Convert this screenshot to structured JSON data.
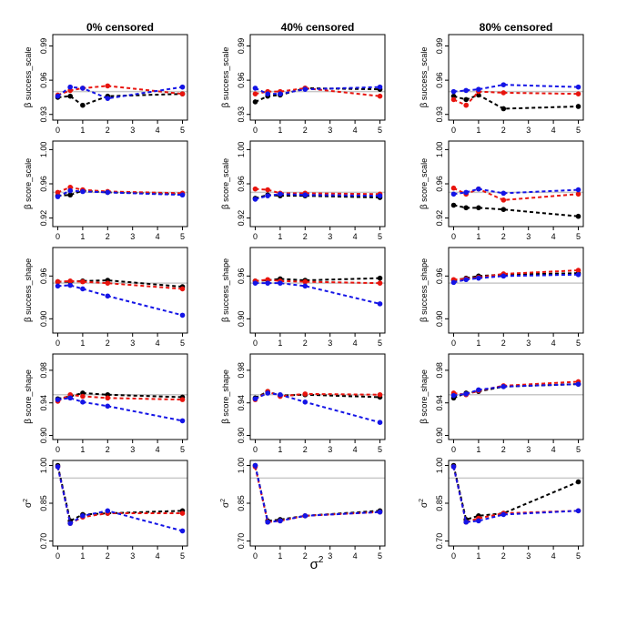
{
  "figure": {
    "xlabel_base": "σ",
    "xlabel_exp": "2"
  },
  "colors": {
    "black": "#000000",
    "red": "#e8140e",
    "blue": "#1414e6",
    "reference": "#c8c8c8"
  },
  "x_ticks": [
    "0",
    "1",
    "2",
    "3",
    "4",
    "5"
  ],
  "columns": [
    "0% censored",
    "40% censored",
    "80% censored"
  ],
  "rows": [
    {
      "ylabel_main": "β",
      "ylabel_sub": " success_scale",
      "yticks": [
        "0.93",
        "0.96",
        "0.99"
      ],
      "ylim": [
        0.925,
        1.0
      ],
      "ref": 0.95
    },
    {
      "ylabel_main": "β",
      "ylabel_sub": " score_scale",
      "yticks": [
        "0.92",
        "0.96",
        "1.00"
      ],
      "ylim": [
        0.91,
        1.01
      ],
      "ref": 0.95
    },
    {
      "ylabel_main": "β",
      "ylabel_sub": " success_shape",
      "yticks": [
        "0.90",
        "0.96"
      ],
      "ylim": [
        0.88,
        1.0
      ],
      "ref": 0.95
    },
    {
      "ylabel_main": "β",
      "ylabel_sub": " score_shape",
      "yticks": [
        "0.90",
        "0.94",
        "0.98"
      ],
      "ylim": [
        0.895,
        1.0
      ],
      "ref": 0.95
    },
    {
      "ylabel_main": "σ",
      "ylabel_sub": "2",
      "yticks": [
        "0.70",
        "0.85",
        "1.00"
      ],
      "ylim": [
        0.68,
        1.02
      ],
      "ref": 0.95
    }
  ],
  "chart_data": [
    {
      "type": "line",
      "title": "0% censored",
      "ylabel": "β success_scale",
      "x": [
        0,
        0.5,
        1,
        2,
        5
      ],
      "ref": 0.95,
      "series": [
        {
          "name": "black",
          "values": [
            0.945,
            0.946,
            0.938,
            0.946,
            0.948
          ]
        },
        {
          "name": "red",
          "values": [
            0.947,
            0.951,
            0.953,
            0.955,
            0.948
          ]
        },
        {
          "name": "blue",
          "values": [
            0.946,
            0.954,
            0.953,
            0.944,
            0.954
          ]
        }
      ]
    },
    {
      "type": "line",
      "title": "40% censored",
      "ylabel": "β success_scale",
      "x": [
        0,
        0.5,
        1,
        2,
        5
      ],
      "ref": 0.95,
      "series": [
        {
          "name": "black",
          "values": [
            0.941,
            0.946,
            0.947,
            0.953,
            0.952
          ]
        },
        {
          "name": "red",
          "values": [
            0.948,
            0.95,
            0.95,
            0.953,
            0.946
          ]
        },
        {
          "name": "blue",
          "values": [
            0.953,
            0.948,
            0.948,
            0.952,
            0.954
          ]
        }
      ]
    },
    {
      "type": "line",
      "title": "80% censored",
      "ylabel": "β success_scale",
      "x": [
        0,
        0.5,
        1,
        2,
        5
      ],
      "ref": 0.95,
      "series": [
        {
          "name": "black",
          "values": [
            0.946,
            0.943,
            0.947,
            0.935,
            0.937
          ]
        },
        {
          "name": "red",
          "values": [
            0.943,
            0.938,
            0.95,
            0.949,
            0.948
          ]
        },
        {
          "name": "blue",
          "values": [
            0.95,
            0.951,
            0.952,
            0.956,
            0.954
          ]
        }
      ]
    },
    {
      "type": "line",
      "title": "0% censored",
      "ylabel": "β score_scale",
      "x": [
        0,
        0.5,
        1,
        2,
        5
      ],
      "ref": 0.95,
      "series": [
        {
          "name": "black",
          "values": [
            0.946,
            0.947,
            0.952,
            0.95,
            0.948
          ]
        },
        {
          "name": "red",
          "values": [
            0.95,
            0.956,
            0.953,
            0.951,
            0.949
          ]
        },
        {
          "name": "blue",
          "values": [
            0.945,
            0.952,
            0.951,
            0.95,
            0.947
          ]
        }
      ]
    },
    {
      "type": "line",
      "title": "40% censored",
      "ylabel": "β score_scale",
      "x": [
        0,
        0.5,
        1,
        2,
        5
      ],
      "ref": 0.95,
      "series": [
        {
          "name": "black",
          "values": [
            0.943,
            0.947,
            0.946,
            0.946,
            0.944
          ]
        },
        {
          "name": "red",
          "values": [
            0.954,
            0.953,
            0.949,
            0.949,
            0.948
          ]
        },
        {
          "name": "blue",
          "values": [
            0.942,
            0.946,
            0.948,
            0.947,
            0.946
          ]
        }
      ]
    },
    {
      "type": "line",
      "title": "80% censored",
      "ylabel": "β score_scale",
      "x": [
        0,
        0.5,
        1,
        2,
        5
      ],
      "ref": 0.95,
      "series": [
        {
          "name": "black",
          "values": [
            0.935,
            0.932,
            0.932,
            0.93,
            0.922
          ]
        },
        {
          "name": "red",
          "values": [
            0.955,
            0.948,
            0.954,
            0.941,
            0.948
          ]
        },
        {
          "name": "blue",
          "values": [
            0.948,
            0.95,
            0.954,
            0.949,
            0.953
          ]
        }
      ]
    },
    {
      "type": "line",
      "title": "0% censored",
      "ylabel": "β success_shape",
      "x": [
        0,
        0.5,
        1,
        2,
        5
      ],
      "ref": 0.95,
      "series": [
        {
          "name": "black",
          "values": [
            0.952,
            0.952,
            0.953,
            0.954,
            0.945
          ]
        },
        {
          "name": "red",
          "values": [
            0.952,
            0.953,
            0.952,
            0.95,
            0.942
          ]
        },
        {
          "name": "blue",
          "values": [
            0.946,
            0.947,
            0.942,
            0.932,
            0.905
          ]
        }
      ]
    },
    {
      "type": "line",
      "title": "40% censored",
      "ylabel": "β success_shape",
      "x": [
        0,
        0.5,
        1,
        2,
        5
      ],
      "ref": 0.95,
      "series": [
        {
          "name": "black",
          "values": [
            0.953,
            0.954,
            0.956,
            0.954,
            0.957
          ]
        },
        {
          "name": "red",
          "values": [
            0.953,
            0.955,
            0.953,
            0.952,
            0.95
          ]
        },
        {
          "name": "blue",
          "values": [
            0.95,
            0.95,
            0.95,
            0.946,
            0.921
          ]
        }
      ]
    },
    {
      "type": "line",
      "title": "80% censored",
      "ylabel": "β success_shape",
      "x": [
        0,
        0.5,
        1,
        2,
        5
      ],
      "ref": 0.95,
      "series": [
        {
          "name": "black",
          "values": [
            0.954,
            0.957,
            0.96,
            0.962,
            0.964
          ]
        },
        {
          "name": "red",
          "values": [
            0.955,
            0.956,
            0.958,
            0.963,
            0.968
          ]
        },
        {
          "name": "blue",
          "values": [
            0.951,
            0.955,
            0.957,
            0.96,
            0.962
          ]
        }
      ]
    },
    {
      "type": "line",
      "title": "0% censored",
      "ylabel": "β score_shape",
      "x": [
        0,
        0.5,
        1,
        2,
        5
      ],
      "ref": 0.95,
      "series": [
        {
          "name": "black",
          "values": [
            0.945,
            0.948,
            0.952,
            0.95,
            0.947
          ]
        },
        {
          "name": "red",
          "values": [
            0.942,
            0.95,
            0.948,
            0.946,
            0.944
          ]
        },
        {
          "name": "blue",
          "values": [
            0.944,
            0.946,
            0.941,
            0.936,
            0.918
          ]
        }
      ]
    },
    {
      "type": "line",
      "title": "40% censored",
      "ylabel": "β score_shape",
      "x": [
        0,
        0.5,
        1,
        2,
        5
      ],
      "ref": 0.95,
      "series": [
        {
          "name": "black",
          "values": [
            0.946,
            0.954,
            0.949,
            0.95,
            0.947
          ]
        },
        {
          "name": "red",
          "values": [
            0.944,
            0.954,
            0.948,
            0.951,
            0.95
          ]
        },
        {
          "name": "blue",
          "values": [
            0.945,
            0.952,
            0.95,
            0.941,
            0.916
          ]
        }
      ]
    },
    {
      "type": "line",
      "title": "80% censored",
      "ylabel": "β score_shape",
      "x": [
        0,
        0.5,
        1,
        2,
        5
      ],
      "ref": 0.95,
      "series": [
        {
          "name": "black",
          "values": [
            0.946,
            0.952,
            0.954,
            0.96,
            0.963
          ]
        },
        {
          "name": "red",
          "values": [
            0.952,
            0.95,
            0.955,
            0.961,
            0.966
          ]
        },
        {
          "name": "blue",
          "values": [
            0.949,
            0.951,
            0.956,
            0.96,
            0.963
          ]
        }
      ]
    },
    {
      "type": "line",
      "title": "0% censored",
      "ylabel": "σ2",
      "x": [
        0,
        0.5,
        1,
        2,
        5
      ],
      "ref": 0.95,
      "series": [
        {
          "name": "black",
          "values": [
            1.0,
            0.78,
            0.805,
            0.81,
            0.82
          ]
        },
        {
          "name": "red",
          "values": [
            0.995,
            0.77,
            0.795,
            0.81,
            0.81
          ]
        },
        {
          "name": "blue",
          "values": [
            0.995,
            0.77,
            0.8,
            0.82,
            0.74
          ]
        }
      ]
    },
    {
      "type": "line",
      "title": "40% censored",
      "ylabel": "σ2",
      "x": [
        0,
        0.5,
        1,
        2,
        5
      ],
      "ref": 0.95,
      "series": [
        {
          "name": "black",
          "values": [
            1.0,
            0.78,
            0.785,
            0.8,
            0.82
          ]
        },
        {
          "name": "red",
          "values": [
            0.995,
            0.775,
            0.78,
            0.8,
            0.815
          ]
        },
        {
          "name": "blue",
          "values": [
            1.0,
            0.775,
            0.78,
            0.8,
            0.815
          ]
        }
      ]
    },
    {
      "type": "line",
      "title": "80% censored",
      "ylabel": "σ2",
      "x": [
        0,
        0.5,
        1,
        2,
        5
      ],
      "ref": 0.95,
      "series": [
        {
          "name": "black",
          "values": [
            1.0,
            0.785,
            0.8,
            0.81,
            0.935
          ]
        },
        {
          "name": "red",
          "values": [
            0.995,
            0.775,
            0.79,
            0.81,
            0.82
          ]
        },
        {
          "name": "blue",
          "values": [
            0.995,
            0.775,
            0.78,
            0.805,
            0.82
          ]
        }
      ]
    }
  ]
}
